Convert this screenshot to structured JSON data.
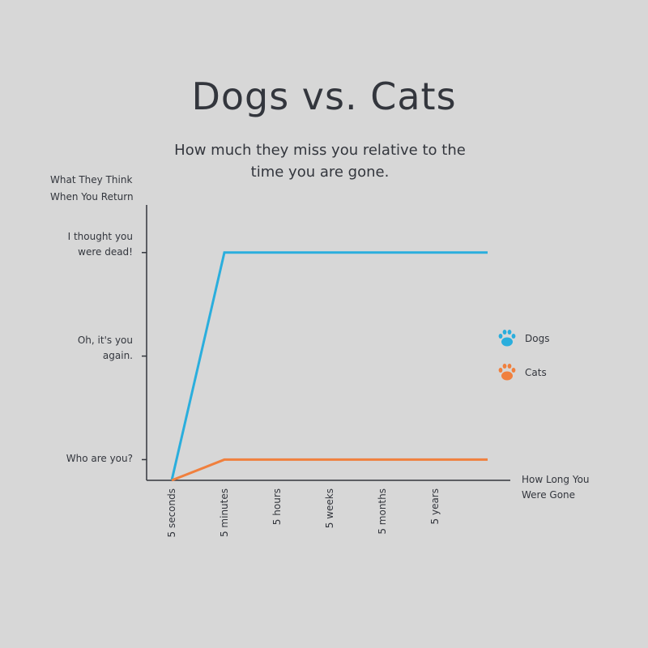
{
  "chart_data": {
    "type": "line",
    "title": "Dogs vs. Cats",
    "subtitle": "How much they miss you relative to the time you are gone.",
    "y_label": "What They Think When You Return",
    "x_label": "How Long You Were Gone",
    "categories": [
      "5 seconds",
      "5 minutes",
      "5 hours",
      "5 weeks",
      "5 months",
      "5 years",
      null
    ],
    "series": [
      {
        "name": "Dogs",
        "color": "#2aaedd",
        "values": [
          0.8,
          3,
          3,
          3,
          3,
          3,
          3
        ]
      },
      {
        "name": "Cats",
        "color": "#f0803e",
        "values": [
          0.8,
          1,
          1,
          1,
          1,
          1,
          1
        ]
      }
    ],
    "ylim": [
      0.8,
      3.46
    ],
    "yticks": [
      {
        "value": 1,
        "label": "Who are you?"
      },
      {
        "value": 2,
        "label": "Oh, it's you again."
      },
      {
        "value": 3,
        "label": "I thought you were dead!"
      }
    ],
    "legend": "right"
  }
}
